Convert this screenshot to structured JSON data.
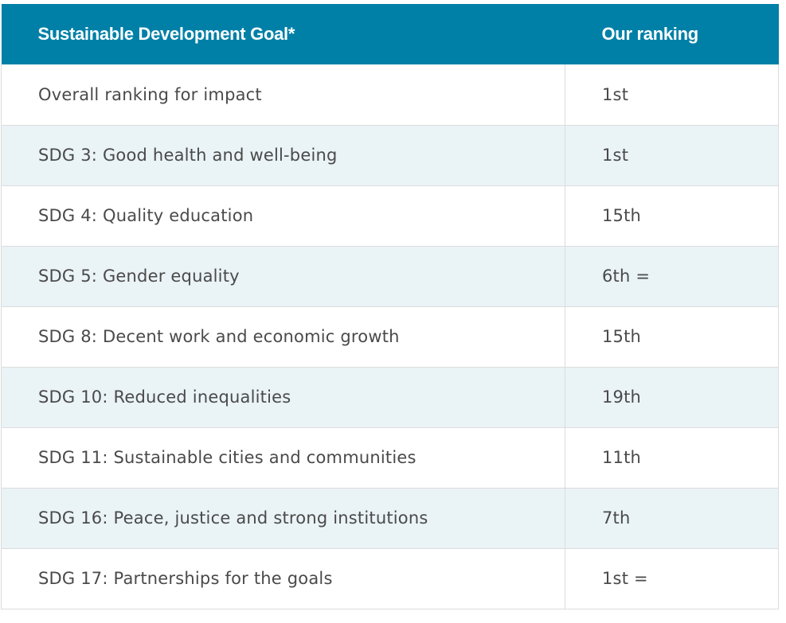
{
  "table": {
    "header": {
      "goal": "Sustainable Development Goal*",
      "ranking": "Our ranking"
    },
    "rows": [
      {
        "goal": "Overall ranking for impact",
        "ranking": "1st"
      },
      {
        "goal": "SDG 3: Good health and well-being",
        "ranking": "1st"
      },
      {
        "goal": "SDG 4: Quality education",
        "ranking": "15th"
      },
      {
        "goal": "SDG 5: Gender equality",
        "ranking": "6th ="
      },
      {
        "goal": "SDG 8: Decent work and economic growth",
        "ranking": "15th"
      },
      {
        "goal": "SDG 10: Reduced inequalities",
        "ranking": "19th"
      },
      {
        "goal": "SDG 11: Sustainable cities and communities",
        "ranking": "11th"
      },
      {
        "goal": "SDG 16: Peace, justice and strong institutions",
        "ranking": "7th"
      },
      {
        "goal": "SDG 17: Partnerships for the goals",
        "ranking": "1st ="
      }
    ]
  },
  "colors": {
    "header_bg": "#0080a7",
    "stripe_bg": "#eaf3f6"
  }
}
